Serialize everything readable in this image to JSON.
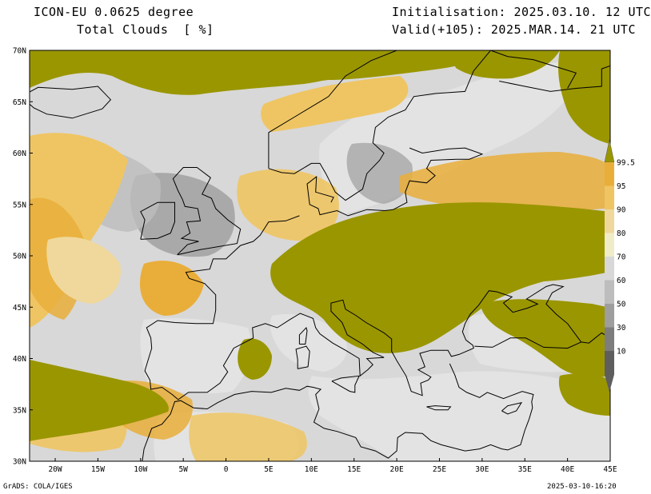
{
  "header": {
    "model": "ICON-EU 0.0625 degree",
    "variable": "Total Clouds  [ %]",
    "init": "Initialisation: 2025.03.10. 12 UTC",
    "valid": "Valid(+105): 2025.MAR.14. 21 UTC"
  },
  "footer": {
    "left": "GrADS: COLA/IGES",
    "right": "2025-03-10-16:20"
  },
  "map": {
    "lat_labels": [
      "70N",
      "65N",
      "60N",
      "55N",
      "50N",
      "45N",
      "40N",
      "35N",
      "30N"
    ],
    "lon_labels": [
      "20W",
      "15W",
      "10W",
      "5W",
      "0",
      "5E",
      "10E",
      "15E",
      "20E",
      "25E",
      "30E",
      "35E",
      "40E",
      "45E"
    ],
    "extent": {
      "lon_min": -23,
      "lon_max": 45,
      "lat_min": 30,
      "lat_max": 70
    }
  },
  "colorbar": {
    "levels": [
      "99.5",
      "95",
      "90",
      "80",
      "70",
      "60",
      "50",
      "30",
      "10"
    ],
    "colors": {
      "above_99_5": "#9a9600",
      "c95_99_5": "#e9ae3a",
      "c90_95": "#efc563",
      "c80_90": "#f0d89c",
      "c70_80": "#f1ecc8",
      "c60_70": "#d8d8d8",
      "c50_60": "#bdbdbd",
      "c30_50": "#9e9e9e",
      "c10_30": "#7d7d7d",
      "below_10": "#5e5e5e"
    }
  },
  "colors": {
    "clear_sky": "#e3e3e3",
    "coastline": "#000000"
  }
}
